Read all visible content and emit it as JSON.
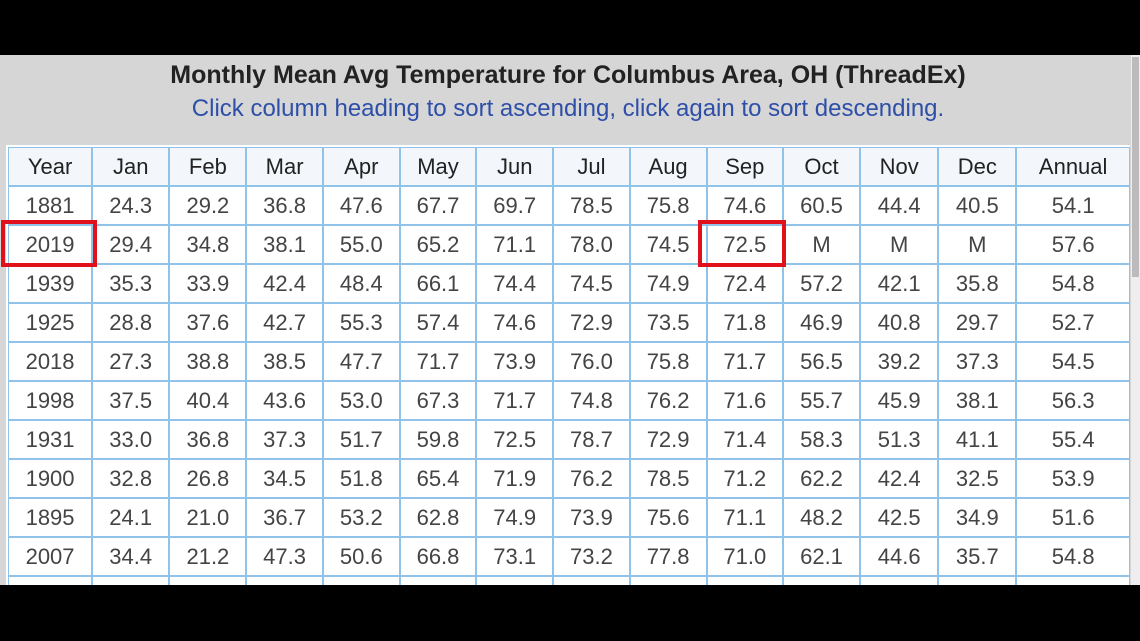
{
  "header": {
    "title": "Monthly Mean Avg Temperature for Columbus Area, OH (ThreadEx)",
    "subtitle": "Click column heading to sort ascending, click again to sort descending."
  },
  "table": {
    "columns": [
      "Year",
      "Jan",
      "Feb",
      "Mar",
      "Apr",
      "May",
      "Jun",
      "Jul",
      "Aug",
      "Sep",
      "Oct",
      "Nov",
      "Dec",
      "Annual"
    ],
    "rows": [
      [
        "1881",
        "24.3",
        "29.2",
        "36.8",
        "47.6",
        "67.7",
        "69.7",
        "78.5",
        "75.8",
        "74.6",
        "60.5",
        "44.4",
        "40.5",
        "54.1"
      ],
      [
        "2019",
        "29.4",
        "34.8",
        "38.1",
        "55.0",
        "65.2",
        "71.1",
        "78.0",
        "74.5",
        "72.5",
        "M",
        "M",
        "M",
        "57.6"
      ],
      [
        "1939",
        "35.3",
        "33.9",
        "42.4",
        "48.4",
        "66.1",
        "74.4",
        "74.5",
        "74.9",
        "72.4",
        "57.2",
        "42.1",
        "35.8",
        "54.8"
      ],
      [
        "1925",
        "28.8",
        "37.6",
        "42.7",
        "55.3",
        "57.4",
        "74.6",
        "72.9",
        "73.5",
        "71.8",
        "46.9",
        "40.8",
        "29.7",
        "52.7"
      ],
      [
        "2018",
        "27.3",
        "38.8",
        "38.5",
        "47.7",
        "71.7",
        "73.9",
        "76.0",
        "75.8",
        "71.7",
        "56.5",
        "39.2",
        "37.3",
        "54.5"
      ],
      [
        "1998",
        "37.5",
        "40.4",
        "43.6",
        "53.0",
        "67.3",
        "71.7",
        "74.8",
        "76.2",
        "71.6",
        "55.7",
        "45.9",
        "38.1",
        "56.3"
      ],
      [
        "1931",
        "33.0",
        "36.8",
        "37.3",
        "51.7",
        "59.8",
        "72.5",
        "78.7",
        "72.9",
        "71.4",
        "58.3",
        "51.3",
        "41.1",
        "55.4"
      ],
      [
        "1900",
        "32.8",
        "26.8",
        "34.5",
        "51.8",
        "65.4",
        "71.9",
        "76.2",
        "78.5",
        "71.2",
        "62.2",
        "42.4",
        "32.5",
        "53.9"
      ],
      [
        "1895",
        "24.1",
        "21.0",
        "36.7",
        "53.2",
        "62.8",
        "74.9",
        "73.9",
        "75.6",
        "71.1",
        "48.2",
        "42.5",
        "34.9",
        "51.6"
      ],
      [
        "2007",
        "34.4",
        "21.2",
        "47.3",
        "50.6",
        "66.8",
        "73.1",
        "73.2",
        "77.8",
        "71.0",
        "62.1",
        "44.6",
        "35.7",
        "54.8"
      ]
    ]
  }
}
